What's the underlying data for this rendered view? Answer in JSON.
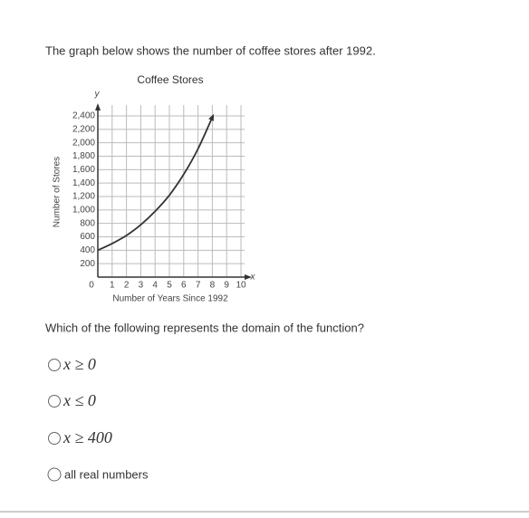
{
  "question": "The graph below shows the number of coffee stores after 1992.",
  "chart_data": {
    "type": "line",
    "title": "Coffee Stores",
    "x_label": "Number of Years Since 1992",
    "y_label": "Number of Stores",
    "x_symbol": "x",
    "y_symbol": "y",
    "x": [
      0,
      1,
      2,
      3,
      4,
      5,
      6,
      7,
      8
    ],
    "values": [
      400,
      500,
      620,
      780,
      980,
      1220,
      1530,
      1910,
      2380
    ],
    "color": "#333333",
    "xlim": [
      0,
      10
    ],
    "xticks": [
      0,
      1,
      2,
      3,
      4,
      5,
      6,
      7,
      8,
      9,
      10
    ],
    "ylim": [
      0,
      2400
    ],
    "yticks": [
      200,
      400,
      600,
      800,
      {
        "value": 1000,
        "label": "1,000"
      },
      {
        "value": 1200,
        "label": "1,200"
      },
      {
        "value": 1400,
        "label": "1,400"
      },
      {
        "value": 1600,
        "label": "1,600"
      },
      {
        "value": 1800,
        "label": "1,800"
      },
      {
        "value": 2000,
        "label": "2,000"
      },
      {
        "value": 2200,
        "label": "2,200"
      },
      {
        "value": 2400,
        "label": "2,400"
      }
    ],
    "grid": true
  },
  "prompt": "Which of the following represents the domain of the function?",
  "options": [
    "x ≥ 0",
    "x ≤ 0",
    "x ≥ 400",
    "all real numbers"
  ]
}
